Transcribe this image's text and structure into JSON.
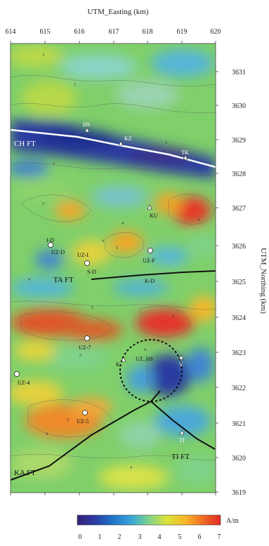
{
  "axes": {
    "x_title": "UTM_Easting (km)",
    "y_title": "UTM_Northing (km)",
    "x_ticks": [
      "614",
      "615",
      "616",
      "617",
      "618",
      "619",
      "620"
    ],
    "y_ticks": [
      "3631",
      "3630",
      "3629",
      "3628",
      "3627",
      "3626",
      "3625",
      "3624",
      "3623",
      "3622",
      "3621",
      "3620",
      "3619"
    ]
  },
  "colorbar": {
    "unit": "A/m",
    "ticks": [
      "0",
      "1",
      "2",
      "3",
      "4",
      "5",
      "6",
      "7"
    ],
    "colors": [
      "#3a1f7a",
      "#2a3ea6",
      "#1f75c9",
      "#3aa7d6",
      "#7fd28a",
      "#d8e33a",
      "#f7b928",
      "#ef6a22",
      "#e02b28"
    ]
  },
  "faults": {
    "ch": "CH FT",
    "ta": "TA FT",
    "ka": "KA FT",
    "ti": "TI FT"
  },
  "sites": {
    "hs": "HS",
    "kz": "KZ",
    "tk": "TK",
    "ku": "KU",
    "id": "I-D",
    "uz_d": "UZ-D",
    "uz_i": "UZ-I",
    "s_d": "S-D",
    "uz_f": "UZ-F",
    "k_d": "K-D",
    "uz_7": "UZ-7",
    "k": "K",
    "uz_hs": "UZ_HS",
    "y": "Y",
    "uz_4": "UZ-4",
    "uz_5": "UZ-5",
    "ti": "TI"
  },
  "contour_labels": [
    "3",
    "3",
    "3",
    "3",
    "3",
    "4",
    "4",
    "4",
    "4",
    "4",
    "4",
    "5",
    "5",
    "5",
    "5",
    "5",
    "5",
    "6"
  ]
}
